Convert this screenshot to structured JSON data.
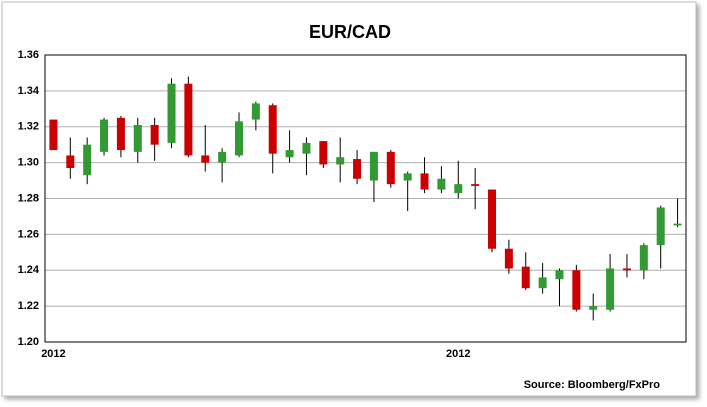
{
  "chart_data": {
    "type": "candlestick",
    "title": "EUR/CAD",
    "source": "Source: Bloomberg/FxPro",
    "categories": [
      "2012",
      null,
      null,
      null,
      null,
      null,
      null,
      null,
      null,
      null,
      null,
      null,
      null,
      null,
      null,
      null,
      null,
      null,
      null,
      null,
      null,
      null,
      null,
      null,
      "2012",
      null,
      null,
      null,
      null,
      null,
      null,
      null,
      null,
      null,
      null,
      null,
      null,
      null
    ],
    "open": [
      1.324,
      1.304,
      1.293,
      1.306,
      1.325,
      1.306,
      1.321,
      1.311,
      1.344,
      1.304,
      1.3,
      1.304,
      1.324,
      1.332,
      1.303,
      1.305,
      1.312,
      1.299,
      1.302,
      1.29,
      1.306,
      1.29,
      1.294,
      1.285,
      1.283,
      1.288,
      1.285,
      1.252,
      1.242,
      1.23,
      1.235,
      1.24,
      1.218,
      1.218,
      1.241,
      1.24,
      1.254,
      1.265
    ],
    "high": [
      1.324,
      1.314,
      1.314,
      1.325,
      1.326,
      1.325,
      1.325,
      1.347,
      1.348,
      1.321,
      1.308,
      1.328,
      1.334,
      1.333,
      1.318,
      1.314,
      1.312,
      1.314,
      1.307,
      1.306,
      1.307,
      1.295,
      1.303,
      1.298,
      1.301,
      1.297,
      1.285,
      1.257,
      1.25,
      1.244,
      1.241,
      1.243,
      1.227,
      1.249,
      1.249,
      1.255,
      1.276,
      1.28
    ],
    "low": [
      1.307,
      1.291,
      1.288,
      1.304,
      1.303,
      1.3,
      1.301,
      1.308,
      1.303,
      1.295,
      1.289,
      1.303,
      1.318,
      1.294,
      1.3,
      1.293,
      1.297,
      1.289,
      1.288,
      1.278,
      1.286,
      1.273,
      1.283,
      1.283,
      1.28,
      1.274,
      1.25,
      1.238,
      1.229,
      1.227,
      1.22,
      1.217,
      1.212,
      1.217,
      1.236,
      1.235,
      1.241,
      1.264
    ],
    "close": [
      1.307,
      1.297,
      1.31,
      1.324,
      1.307,
      1.321,
      1.31,
      1.344,
      1.304,
      1.3,
      1.306,
      1.323,
      1.333,
      1.305,
      1.307,
      1.311,
      1.299,
      1.303,
      1.291,
      1.306,
      1.288,
      1.294,
      1.285,
      1.291,
      1.288,
      1.287,
      1.252,
      1.241,
      1.23,
      1.236,
      1.24,
      1.218,
      1.22,
      1.241,
      1.24,
      1.254,
      1.275,
      1.266
    ],
    "up_color": "#339933",
    "down_color": "#cc0000",
    "ylim": [
      1.2,
      1.36
    ],
    "yticks": [
      {
        "value": 1.2,
        "label": "1.20"
      },
      1.22,
      1.24,
      1.26,
      1.28,
      {
        "value": 1.3,
        "label": "1.30"
      },
      1.32,
      1.34,
      1.36
    ],
    "grid": true
  }
}
